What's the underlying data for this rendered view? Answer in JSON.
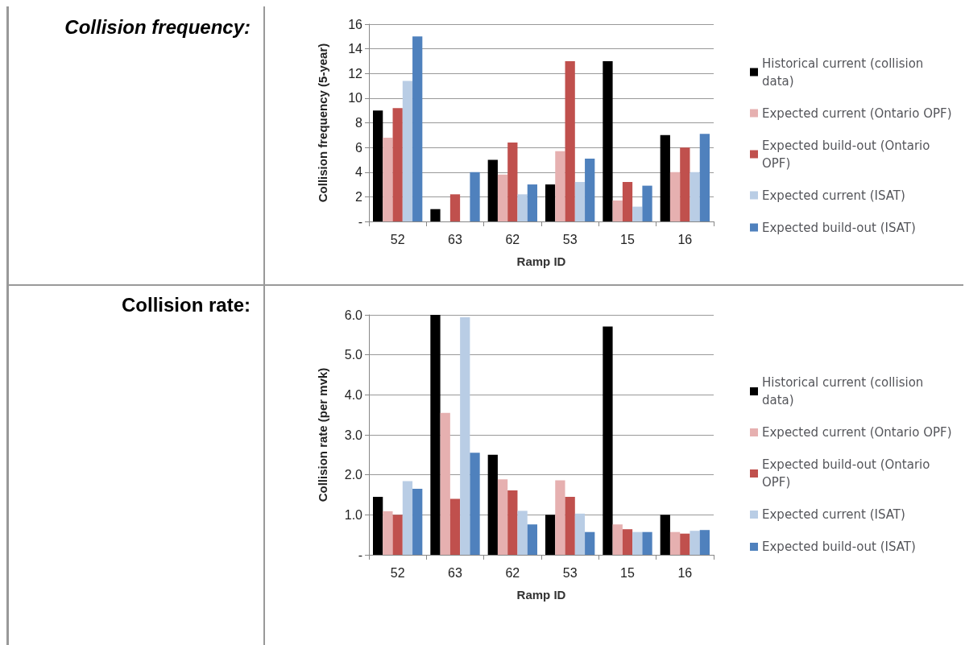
{
  "chart_data": [
    {
      "type": "bar",
      "title": "Collision frequency:",
      "xlabel": "Ramp ID",
      "ylabel": "Collision frequency (5-year)",
      "categories": [
        "52",
        "63",
        "62",
        "53",
        "15",
        "16"
      ],
      "series": [
        {
          "name": "Historical current (collision data)",
          "color": "#000000",
          "values": [
            9,
            1,
            5,
            3,
            13,
            7
          ]
        },
        {
          "name": "Expected current (Ontario OPF)",
          "color": "#e6b0b0",
          "values": [
            6.8,
            0,
            3.8,
            5.7,
            1.7,
            4.0
          ]
        },
        {
          "name": "Expected build-out (Ontario OPF)",
          "color": "#c0504d",
          "values": [
            9.2,
            2.2,
            6.4,
            13,
            3.2,
            6.0
          ]
        },
        {
          "name": "Expected current (ISAT)",
          "color": "#b9cde5",
          "values": [
            11.4,
            0,
            2.2,
            3.2,
            1.2,
            4.0
          ]
        },
        {
          "name": "Expected build-out (ISAT)",
          "color": "#4f81bd",
          "values": [
            15,
            4.0,
            3,
            5.1,
            2.9,
            7.1
          ]
        }
      ],
      "ylim": [
        0,
        16
      ],
      "yticks": [
        {
          "value": 0,
          "label": "-"
        },
        2,
        4,
        6,
        8,
        10,
        12,
        14,
        16
      ],
      "grid": "y",
      "legend": "right"
    },
    {
      "type": "bar",
      "title": "Collision rate:",
      "xlabel": "Ramp ID",
      "ylabel": "Collision rate (per mvk)",
      "categories": [
        "52",
        "63",
        "62",
        "53",
        "15",
        "16"
      ],
      "series": [
        {
          "name": "Historical current (collision data)",
          "color": "#000000",
          "values": [
            1.45,
            6.0,
            2.5,
            1.0,
            5.71,
            1.0
          ]
        },
        {
          "name": "Expected current (Ontario OPF)",
          "color": "#e6b0b0",
          "values": [
            1.09,
            3.55,
            1.89,
            1.86,
            0.76,
            0.57
          ]
        },
        {
          "name": "Expected build-out (Ontario OPF)",
          "color": "#c0504d",
          "values": [
            1.0,
            1.4,
            1.61,
            1.45,
            0.64,
            0.53
          ]
        },
        {
          "name": "Expected current (ISAT)",
          "color": "#b9cde5",
          "values": [
            1.84,
            5.94,
            1.1,
            1.03,
            0.57,
            0.6
          ]
        },
        {
          "name": "Expected build-out (ISAT)",
          "color": "#4f81bd",
          "values": [
            1.65,
            2.55,
            0.76,
            0.57,
            0.57,
            0.62
          ]
        }
      ],
      "ylim": [
        0,
        6
      ],
      "yticks": [
        {
          "value": 0,
          "label": "-"
        },
        {
          "value": 1,
          "label": "1.0"
        },
        {
          "value": 2,
          "label": "2.0"
        },
        {
          "value": 3,
          "label": "3.0"
        },
        {
          "value": 4,
          "label": "4.0"
        },
        {
          "value": 5,
          "label": "5.0"
        },
        {
          "value": 6,
          "label": "6.0"
        }
      ],
      "grid": "y",
      "legend": "right"
    }
  ]
}
